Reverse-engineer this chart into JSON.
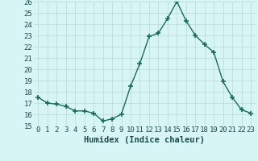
{
  "x": [
    0,
    1,
    2,
    3,
    4,
    5,
    6,
    7,
    8,
    9,
    10,
    11,
    12,
    13,
    14,
    15,
    16,
    17,
    18,
    19,
    20,
    21,
    22,
    23
  ],
  "y": [
    17.5,
    17.0,
    16.9,
    16.7,
    16.3,
    16.3,
    16.1,
    15.4,
    15.6,
    16.0,
    18.5,
    20.5,
    22.9,
    23.2,
    24.5,
    26.0,
    24.3,
    23.0,
    22.2,
    21.5,
    18.9,
    17.5,
    16.4,
    16.1
  ],
  "xlabel": "Humidex (Indice chaleur)",
  "ylim": [
    15,
    26
  ],
  "xlim": [
    -0.5,
    23.5
  ],
  "line_color": "#1a6b5a",
  "marker": "+",
  "marker_size": 4,
  "bg_color": "#d8f5f5",
  "grid_color": "#b8d8d8",
  "yticks": [
    15,
    16,
    17,
    18,
    19,
    20,
    21,
    22,
    23,
    24,
    25,
    26
  ],
  "xticks": [
    0,
    1,
    2,
    3,
    4,
    5,
    6,
    7,
    8,
    9,
    10,
    11,
    12,
    13,
    14,
    15,
    16,
    17,
    18,
    19,
    20,
    21,
    22,
    23
  ],
  "xlabel_fontsize": 7.5,
  "tick_fontsize": 6.5,
  "linewidth": 1.0,
  "marker_color": "#1a6b5a"
}
